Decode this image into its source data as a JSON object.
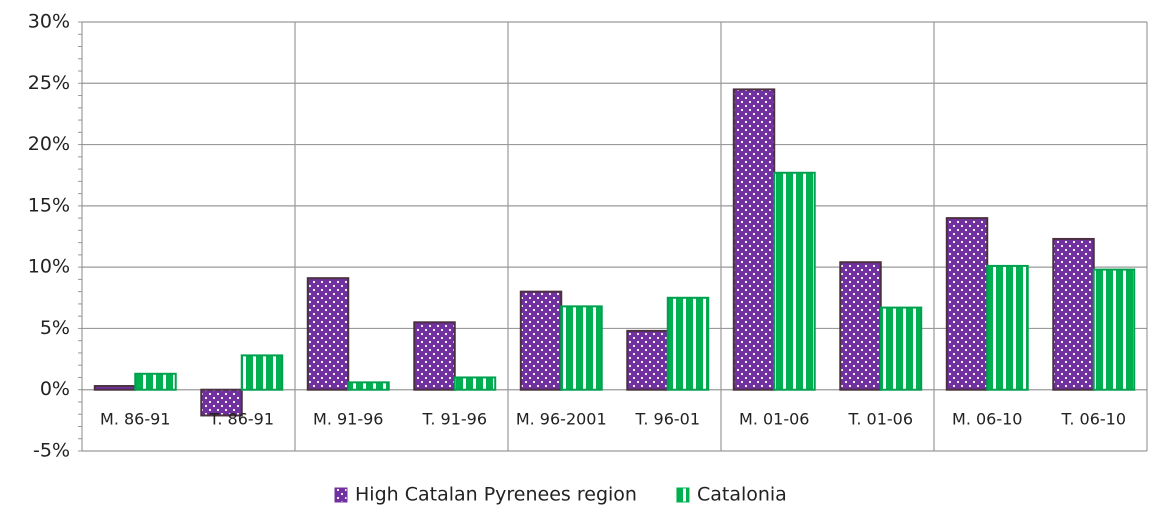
{
  "chart_data": {
    "type": "bar",
    "categories": [
      "M. 86-91",
      "T. 86-91",
      "M. 91-96",
      "T. 91-96",
      "M. 96-2001",
      "T. 96-01",
      "M. 01-06",
      "T. 01-06",
      "M. 06-10",
      "T. 06-10"
    ],
    "series": [
      {
        "name": "High Catalan Pyrenees region",
        "color": "#7030a0",
        "values": [
          0.3,
          -2.1,
          9.1,
          5.5,
          8.0,
          4.8,
          24.5,
          10.4,
          14.0,
          12.3
        ]
      },
      {
        "name": "Catalonia",
        "color": "#00b050",
        "values": [
          1.3,
          2.8,
          0.6,
          1.0,
          6.8,
          7.5,
          17.7,
          6.7,
          10.1,
          9.8
        ]
      }
    ],
    "ylim": [
      -5,
      30
    ],
    "yticks": [
      {
        "value": -5,
        "label": "-5%"
      },
      {
        "value": 0,
        "label": "0%"
      },
      {
        "value": 5,
        "label": "5%"
      },
      {
        "value": 10,
        "label": "10%"
      },
      {
        "value": 15,
        "label": "15%"
      },
      {
        "value": 20,
        "label": "20%"
      },
      {
        "value": 25,
        "label": "25%"
      },
      {
        "value": 30,
        "label": "30%"
      }
    ],
    "grid": true,
    "legend": "bottom"
  }
}
